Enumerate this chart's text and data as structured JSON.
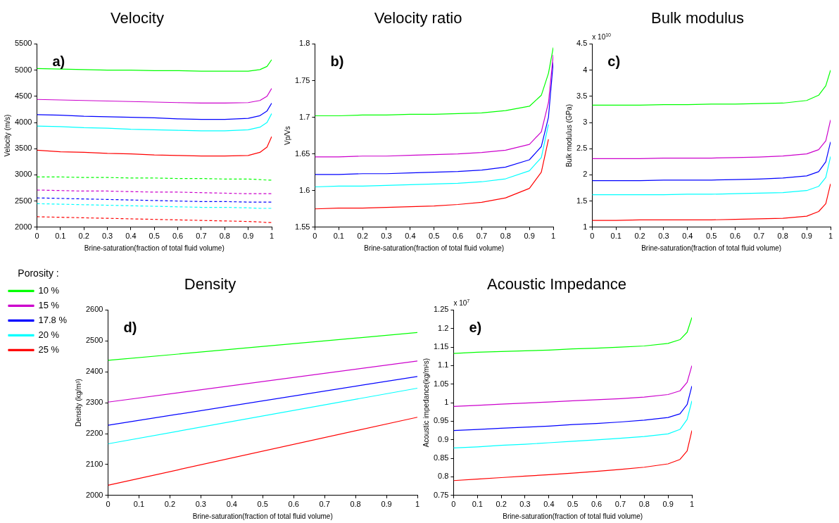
{
  "chart_data": [
    {
      "type": "line",
      "title": "Velocity",
      "xlabel": "Brine-saturation(fraction of total fluid volume)",
      "ylabel": "Velocity (m/s)",
      "annotations": [
        "a)"
      ],
      "grid": false,
      "legend": false,
      "marker": "none",
      "x": [
        0,
        0.1,
        0.2,
        0.3,
        0.4,
        0.5,
        0.6,
        0.7,
        0.8,
        0.9,
        0.95,
        0.98,
        1
      ],
      "xlim": [
        0,
        1
      ],
      "xticks": [
        0,
        0.1,
        0.2,
        0.3,
        0.4,
        0.5,
        0.6,
        0.7,
        0.8,
        0.9,
        1
      ],
      "ylim": [
        2000,
        5500
      ],
      "yticks": [
        2000,
        2500,
        3000,
        3500,
        4000,
        4500,
        5000,
        5500
      ],
      "series": [
        {
          "color": "#00ff00",
          "line_style": "solid",
          "values": [
            5030,
            5020,
            5010,
            5000,
            5000,
            4990,
            4990,
            4980,
            4980,
            4980,
            5010,
            5070,
            5200
          ]
        },
        {
          "color": "#cc00cc",
          "line_style": "solid",
          "values": [
            4440,
            4430,
            4420,
            4410,
            4400,
            4390,
            4380,
            4370,
            4370,
            4380,
            4420,
            4500,
            4650
          ]
        },
        {
          "color": "#0000ff",
          "line_style": "solid",
          "values": [
            4150,
            4140,
            4120,
            4110,
            4100,
            4090,
            4070,
            4060,
            4060,
            4080,
            4130,
            4220,
            4370
          ]
        },
        {
          "color": "#00ffff",
          "line_style": "solid",
          "values": [
            3930,
            3920,
            3900,
            3890,
            3870,
            3860,
            3850,
            3840,
            3840,
            3860,
            3910,
            4000,
            4170
          ]
        },
        {
          "color": "#ff0000",
          "line_style": "solid",
          "values": [
            3470,
            3440,
            3430,
            3410,
            3400,
            3380,
            3370,
            3360,
            3360,
            3370,
            3430,
            3530,
            3730
          ]
        },
        {
          "color": "#00ff00",
          "line_style": "dashed",
          "values": [
            2960,
            2960,
            2950,
            2950,
            2940,
            2940,
            2930,
            2930,
            2920,
            2920,
            2910,
            2900,
            2900
          ]
        },
        {
          "color": "#cc00cc",
          "line_style": "dashed",
          "values": [
            2710,
            2700,
            2690,
            2690,
            2680,
            2670,
            2670,
            2660,
            2650,
            2640,
            2640,
            2640,
            2640
          ]
        },
        {
          "color": "#0000ff",
          "line_style": "dashed",
          "values": [
            2560,
            2550,
            2540,
            2530,
            2520,
            2510,
            2500,
            2490,
            2490,
            2480,
            2480,
            2480,
            2480
          ]
        },
        {
          "color": "#00ffff",
          "line_style": "dashed",
          "values": [
            2450,
            2440,
            2430,
            2420,
            2410,
            2400,
            2390,
            2380,
            2380,
            2370,
            2360,
            2360,
            2360
          ]
        },
        {
          "color": "#ff0000",
          "line_style": "dashed",
          "values": [
            2200,
            2190,
            2180,
            2170,
            2160,
            2150,
            2140,
            2130,
            2120,
            2110,
            2100,
            2090,
            2090
          ]
        }
      ]
    },
    {
      "type": "line",
      "title": "Velocity ratio",
      "xlabel": "Brine-saturation(fraction of total fluid volume)",
      "ylabel": "Vp/Vs",
      "annotations": [
        "b)"
      ],
      "grid": false,
      "legend": false,
      "marker": "none",
      "x": [
        0,
        0.1,
        0.2,
        0.3,
        0.4,
        0.5,
        0.6,
        0.7,
        0.8,
        0.9,
        0.95,
        0.98,
        1
      ],
      "xlim": [
        0,
        1
      ],
      "xticks": [
        0,
        0.1,
        0.2,
        0.3,
        0.4,
        0.5,
        0.6,
        0.7,
        0.8,
        0.9,
        1
      ],
      "ylim": [
        1.55,
        1.8
      ],
      "yticks": [
        1.55,
        1.6,
        1.65,
        1.7,
        1.75,
        1.8
      ],
      "series": [
        {
          "color": "#00ff00",
          "values": [
            1.702,
            1.702,
            1.703,
            1.703,
            1.704,
            1.704,
            1.705,
            1.706,
            1.709,
            1.715,
            1.73,
            1.76,
            1.795
          ]
        },
        {
          "color": "#cc00cc",
          "values": [
            1.646,
            1.646,
            1.647,
            1.647,
            1.648,
            1.649,
            1.65,
            1.652,
            1.655,
            1.663,
            1.68,
            1.72,
            1.785
          ]
        },
        {
          "color": "#0000ff",
          "values": [
            1.622,
            1.622,
            1.623,
            1.623,
            1.624,
            1.625,
            1.626,
            1.628,
            1.632,
            1.642,
            1.66,
            1.7,
            1.775
          ]
        },
        {
          "color": "#00ffff",
          "values": [
            1.605,
            1.606,
            1.606,
            1.607,
            1.608,
            1.609,
            1.61,
            1.612,
            1.616,
            1.627,
            1.645,
            1.69,
            null
          ]
        },
        {
          "color": "#ff0000",
          "values": [
            1.575,
            1.576,
            1.576,
            1.577,
            1.578,
            1.579,
            1.581,
            1.584,
            1.59,
            1.603,
            1.625,
            1.67,
            null
          ]
        }
      ]
    },
    {
      "type": "line",
      "title": "Bulk modulus",
      "xlabel": "Brine-saturation(fraction of total fluid volume)",
      "ylabel": "Bulk modulus (GPa)",
      "annotations": [
        "c)",
        "x 10$^{10}$"
      ],
      "grid": false,
      "legend": false,
      "marker": "none",
      "x": [
        0,
        0.1,
        0.2,
        0.3,
        0.4,
        0.5,
        0.6,
        0.7,
        0.8,
        0.9,
        0.95,
        0.98,
        1
      ],
      "xlim": [
        0,
        1
      ],
      "xticks": [
        0,
        0.1,
        0.2,
        0.3,
        0.4,
        0.5,
        0.6,
        0.7,
        0.8,
        0.9,
        1
      ],
      "ylim": [
        1,
        4.5
      ],
      "yticks": [
        1,
        1.5,
        2,
        2.5,
        3,
        3.5,
        4,
        4.5
      ],
      "series": [
        {
          "color": "#00ff00",
          "values": [
            3.33,
            3.33,
            3.33,
            3.34,
            3.34,
            3.35,
            3.35,
            3.36,
            3.37,
            3.42,
            3.52,
            3.7,
            4.0
          ]
        },
        {
          "color": "#cc00cc",
          "values": [
            2.31,
            2.31,
            2.31,
            2.32,
            2.32,
            2.32,
            2.33,
            2.34,
            2.36,
            2.4,
            2.48,
            2.65,
            3.05
          ]
        },
        {
          "color": "#0000ff",
          "values": [
            1.89,
            1.89,
            1.89,
            1.9,
            1.9,
            1.9,
            1.91,
            1.92,
            1.94,
            1.98,
            2.06,
            2.25,
            2.63
          ]
        },
        {
          "color": "#00ffff",
          "values": [
            1.62,
            1.62,
            1.62,
            1.62,
            1.63,
            1.63,
            1.64,
            1.65,
            1.66,
            1.7,
            1.78,
            1.95,
            2.35
          ]
        },
        {
          "color": "#ff0000",
          "values": [
            1.13,
            1.13,
            1.14,
            1.14,
            1.14,
            1.14,
            1.15,
            1.16,
            1.17,
            1.21,
            1.3,
            1.45,
            1.83
          ]
        }
      ]
    },
    {
      "type": "line",
      "title": "Density",
      "xlabel": "Brine-saturation(fraction of total fluid volume)",
      "ylabel": "Density (kg/m³)",
      "annotations": [
        "d)"
      ],
      "grid": false,
      "legend": "left",
      "legend_title": "Porosity :",
      "marker": "none",
      "x": [
        0,
        1
      ],
      "xlim": [
        0,
        1
      ],
      "xticks": [
        0,
        0.1,
        0.2,
        0.3,
        0.4,
        0.5,
        0.6,
        0.7,
        0.8,
        0.9,
        1
      ],
      "ylim": [
        2000,
        2600
      ],
      "yticks": [
        2000,
        2100,
        2200,
        2300,
        2400,
        2500,
        2600
      ],
      "series": [
        {
          "name": "10 %",
          "color": "#00ff00",
          "values": [
            2437,
            2527
          ]
        },
        {
          "name": "15 %",
          "color": "#cc00cc",
          "values": [
            2302,
            2435
          ]
        },
        {
          "name": "17.8 %",
          "color": "#0000ff",
          "values": [
            2227,
            2385
          ]
        },
        {
          "name": "20 %",
          "color": "#00ffff",
          "values": [
            2167,
            2347
          ]
        },
        {
          "name": "25 %",
          "color": "#ff0000",
          "values": [
            2033,
            2253
          ]
        }
      ]
    },
    {
      "type": "line",
      "title": "Acoustic Impedance",
      "xlabel": "Brine-saturation(fraction of total fluid volume)",
      "ylabel": "Acoustic impedance(kg/m²s)",
      "annotations": [
        "e)",
        "x 10$^{7}$"
      ],
      "grid": false,
      "legend": false,
      "marker": "none",
      "x": [
        0,
        0.1,
        0.2,
        0.3,
        0.4,
        0.5,
        0.6,
        0.7,
        0.8,
        0.9,
        0.95,
        0.98,
        1
      ],
      "xlim": [
        0,
        1
      ],
      "xticks": [
        0,
        0.1,
        0.2,
        0.3,
        0.4,
        0.5,
        0.6,
        0.7,
        0.8,
        0.9,
        1
      ],
      "ylim": [
        0.75,
        1.25
      ],
      "yticks": [
        0.75,
        0.8,
        0.85,
        0.9,
        0.95,
        1,
        1.05,
        1.1,
        1.15,
        1.2,
        1.25
      ],
      "series": [
        {
          "color": "#00ff00",
          "values": [
            1.133,
            1.136,
            1.138,
            1.14,
            1.142,
            1.145,
            1.147,
            1.15,
            1.153,
            1.16,
            1.17,
            1.19,
            1.23
          ]
        },
        {
          "color": "#cc00cc",
          "values": [
            0.99,
            0.993,
            0.996,
            0.999,
            1.002,
            1.005,
            1.008,
            1.011,
            1.015,
            1.022,
            1.032,
            1.055,
            1.1
          ]
        },
        {
          "color": "#0000ff",
          "values": [
            0.925,
            0.928,
            0.931,
            0.934,
            0.937,
            0.941,
            0.944,
            0.948,
            0.953,
            0.96,
            0.97,
            0.995,
            1.045
          ]
        },
        {
          "color": "#00ffff",
          "values": [
            0.878,
            0.881,
            0.885,
            0.888,
            0.892,
            0.896,
            0.9,
            0.904,
            0.909,
            0.916,
            0.928,
            0.955,
            1.005
          ]
        },
        {
          "color": "#ff0000",
          "values": [
            0.79,
            0.794,
            0.798,
            0.802,
            0.806,
            0.81,
            0.815,
            0.82,
            0.826,
            0.835,
            0.847,
            0.87,
            0.925
          ]
        }
      ]
    }
  ]
}
